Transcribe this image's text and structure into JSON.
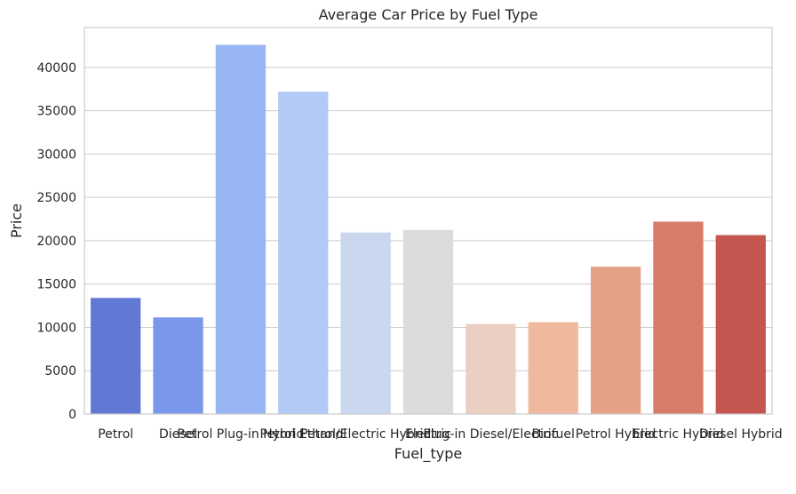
{
  "chart_data": {
    "type": "bar",
    "title": "Average Car Price by Fuel Type",
    "xlabel": "Fuel_type",
    "ylabel": "Price",
    "ylim": [
      0,
      44600
    ],
    "yticks": [
      0,
      5000,
      10000,
      15000,
      20000,
      25000,
      30000,
      35000,
      40000
    ],
    "grid": true,
    "categories": [
      "Petrol",
      "Diesel",
      "Petrol Plug-in Hybrid",
      "Petrol Ethanol",
      "Petrol/Electric Hybrid",
      "Electric",
      "Plug-in Diesel/Electric",
      "Biofuel",
      "Petrol Hybrid",
      "Electric Hybrid",
      "Diesel Hybrid"
    ],
    "values": [
      13400,
      11150,
      42600,
      37200,
      20950,
      21250,
      10400,
      10600,
      17000,
      22200,
      20650
    ],
    "colors": [
      "#6179d5",
      "#7b97ea",
      "#97b6f3",
      "#b3caf6",
      "#cad7ee",
      "#dddcdc",
      "#ebcfc2",
      "#f0b99e",
      "#e6a085",
      "#d67c69",
      "#c4564f"
    ]
  }
}
